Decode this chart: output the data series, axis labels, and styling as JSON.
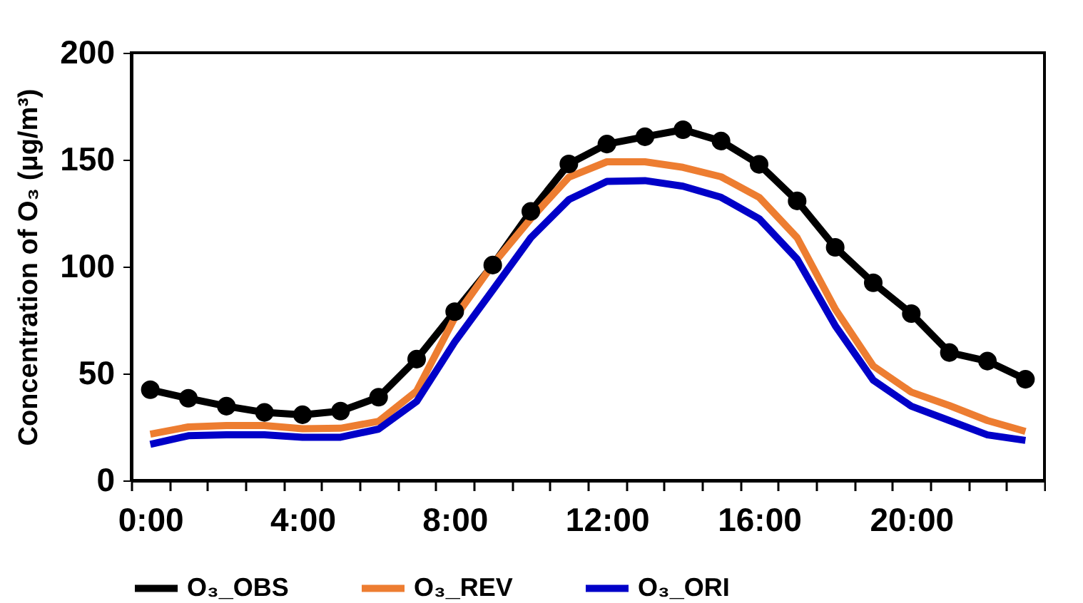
{
  "chart_data": {
    "type": "line",
    "ylabel": "Concentration of O₃ (μg/m³)",
    "categories": [
      "0:00",
      null,
      null,
      null,
      "4:00",
      null,
      null,
      null,
      "8:00",
      null,
      null,
      null,
      "12:00",
      null,
      null,
      null,
      "16:00",
      null,
      null,
      null,
      "20:00",
      null,
      null,
      null
    ],
    "ylim": [
      0,
      200
    ],
    "yticks": [
      0,
      50,
      100,
      150,
      200
    ],
    "grid": false,
    "legend": "bottom",
    "series": [
      {
        "name": "O₃_OBS",
        "color": "#000000",
        "marker": "circle",
        "values": [
          42.4,
          38.4,
          34.7,
          31.8,
          30.7,
          32.4,
          38.9,
          56.7,
          78.9,
          100.7,
          125.8,
          148,
          157.3,
          160.7,
          164,
          158.7,
          147.8,
          130.7,
          109,
          92.4,
          78,
          59.8,
          55.8,
          47.3
        ]
      },
      {
        "name": "O₃_REV",
        "color": "#ed7d31",
        "marker": "none",
        "values": [
          21.6,
          25,
          25.7,
          25.7,
          24.2,
          24.4,
          27.6,
          41.8,
          76,
          101,
          122.4,
          141.8,
          149,
          149,
          146.4,
          142,
          132.4,
          113.5,
          80.2,
          53.5,
          41.3,
          35,
          28,
          22.9
        ]
      },
      {
        "name": "O₃_ORI",
        "color": "#0000c8",
        "marker": "none",
        "values": [
          16.9,
          20.9,
          21.3,
          21.3,
          20.2,
          20.2,
          24,
          36.9,
          64.7,
          89,
          113.5,
          131.3,
          139.8,
          140.2,
          137.6,
          132.4,
          122.4,
          103.5,
          72.4,
          46.9,
          34.7,
          28,
          21.3,
          18.7
        ]
      }
    ]
  }
}
